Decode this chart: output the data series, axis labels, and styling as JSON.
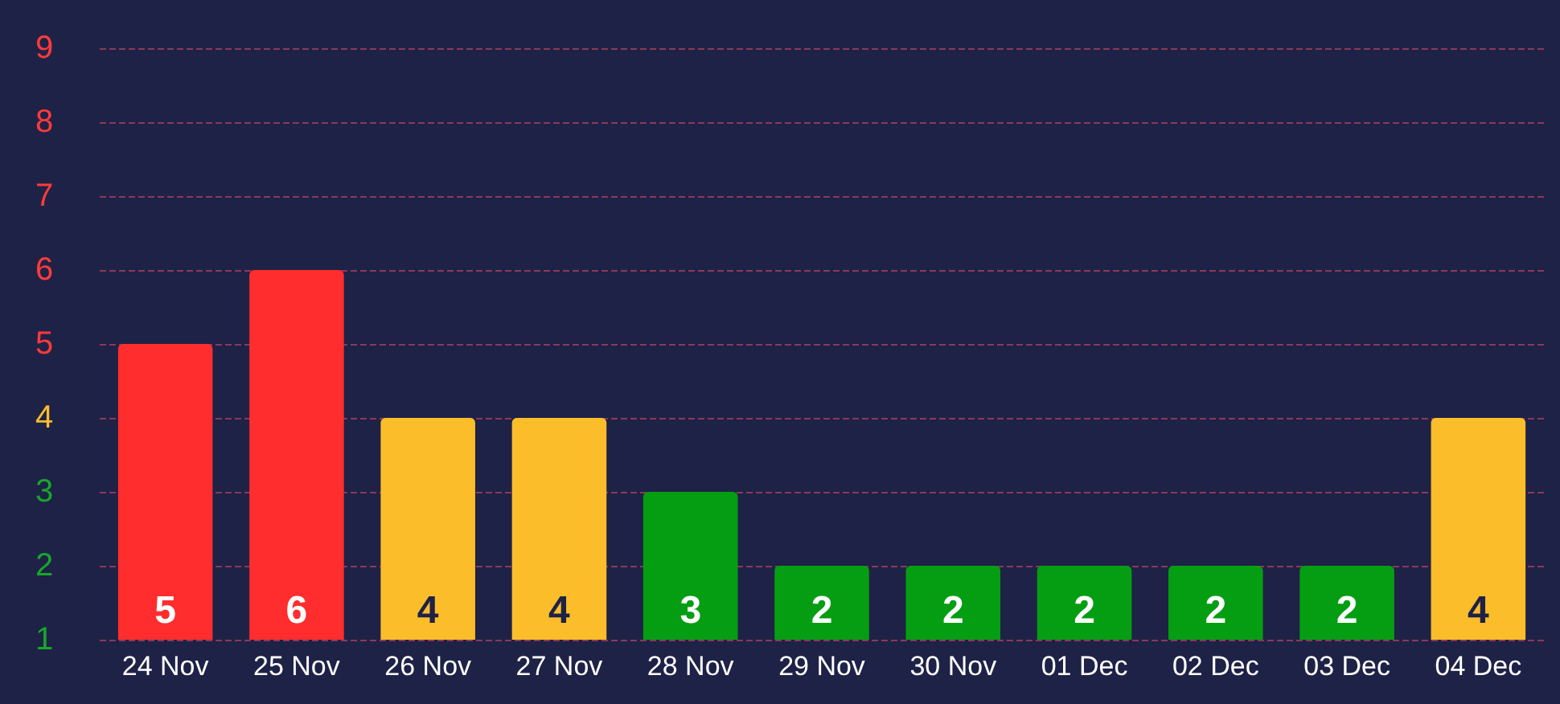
{
  "chart_data": {
    "type": "bar",
    "categories": [
      "24 Nov",
      "25 Nov",
      "26 Nov",
      "27 Nov",
      "28 Nov",
      "29 Nov",
      "30 Nov",
      "01 Dec",
      "02 Dec",
      "03 Dec",
      "04 Dec"
    ],
    "values": [
      5,
      6,
      4,
      4,
      3,
      2,
      2,
      2,
      2,
      2,
      4
    ],
    "colors": [
      "#ff2d2d",
      "#ff2d2d",
      "#fbbd2a",
      "#fbbd2a",
      "#059e13",
      "#059e13",
      "#059e13",
      "#059e13",
      "#059e13",
      "#059e13",
      "#fbbd2a"
    ],
    "ylim": [
      1,
      9
    ],
    "yticks": [
      1,
      2,
      3,
      4,
      5,
      6,
      7,
      8,
      9
    ],
    "grid": "y",
    "data_labels": true
  }
}
